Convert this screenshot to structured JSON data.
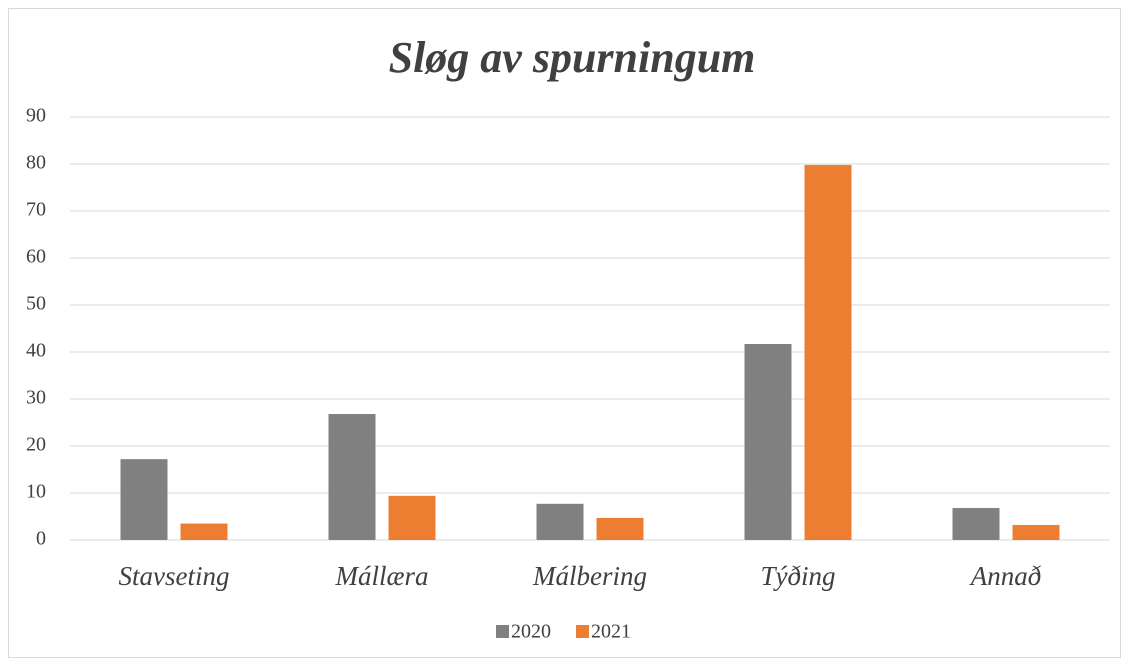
{
  "chart_data": {
    "type": "bar",
    "title": "Sløg av spurningum",
    "categories": [
      "Stavseting",
      "Mállæra",
      "Málbering",
      "Týðing",
      "Annað"
    ],
    "series": [
      {
        "name": "2020",
        "color": "#808080",
        "values": [
          17.2,
          26.8,
          7.7,
          41.7,
          6.8
        ]
      },
      {
        "name": "2021",
        "color": "#ed7d31",
        "values": [
          3.5,
          9.4,
          4.7,
          79.8,
          3.2
        ]
      }
    ],
    "ylim": [
      0,
      90
    ],
    "yticks": [
      0,
      10,
      20,
      30,
      40,
      50,
      60,
      70,
      80,
      90
    ],
    "grid": true,
    "legend": "bottom"
  }
}
